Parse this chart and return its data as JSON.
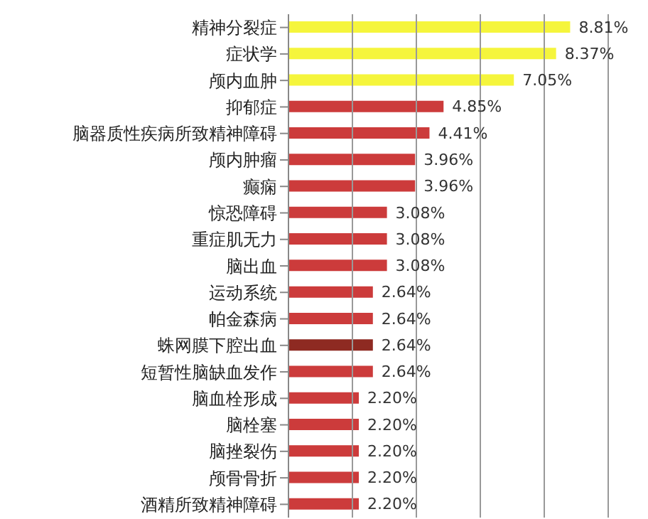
{
  "chart_data": {
    "type": "bar",
    "orientation": "horizontal",
    "categories": [
      "精神分裂症",
      "症状学",
      "颅内血肿",
      "抑郁症",
      "脑器质性疾病所致精神障碍",
      "颅内肿瘤",
      "癫痫",
      "惊恐障碍",
      "重症肌无力",
      "脑出血",
      "运动系统",
      "帕金森病",
      "蛛网膜下腔出血",
      "短暂性脑缺血发作",
      "脑血栓形成",
      "脑栓塞",
      "脑挫裂伤",
      "颅骨骨折",
      "酒精所致精神障碍"
    ],
    "values": [
      8.81,
      8.37,
      7.05,
      4.85,
      4.41,
      3.96,
      3.96,
      3.08,
      3.08,
      3.08,
      2.64,
      2.64,
      2.64,
      2.64,
      2.2,
      2.2,
      2.2,
      2.2,
      2.2
    ],
    "value_labels": [
      "8.81%",
      "8.37%",
      "7.05%",
      "4.85%",
      "4.41%",
      "3.96%",
      "3.96%",
      "3.08%",
      "3.08%",
      "3.08%",
      "2.64%",
      "2.64%",
      "2.64%",
      "2.64%",
      "2.20%",
      "2.20%",
      "2.20%",
      "2.20%",
      "2.20%"
    ],
    "colors": [
      "#f5f53c",
      "#f5f53c",
      "#f5f53c",
      "#cc3b3b",
      "#cc3b3b",
      "#cc3b3b",
      "#cc3b3b",
      "#cc3b3b",
      "#cc3b3b",
      "#cc3b3b",
      "#cc3b3b",
      "#cc3b3b",
      "#8e2a22",
      "#cc3b3b",
      "#cc3b3b",
      "#cc3b3b",
      "#cc3b3b",
      "#cc3b3b",
      "#cc3b3b"
    ],
    "xlim": [
      0,
      10
    ],
    "xticks": [
      {
        "value": 0,
        "label": null
      },
      {
        "value": 2,
        "label": null
      },
      {
        "value": 4,
        "label": null
      },
      {
        "value": 6,
        "label": null
      },
      {
        "value": 8,
        "label": null
      },
      {
        "value": 10,
        "label": null
      }
    ],
    "grid": "x",
    "tick_labels": "y"
  }
}
